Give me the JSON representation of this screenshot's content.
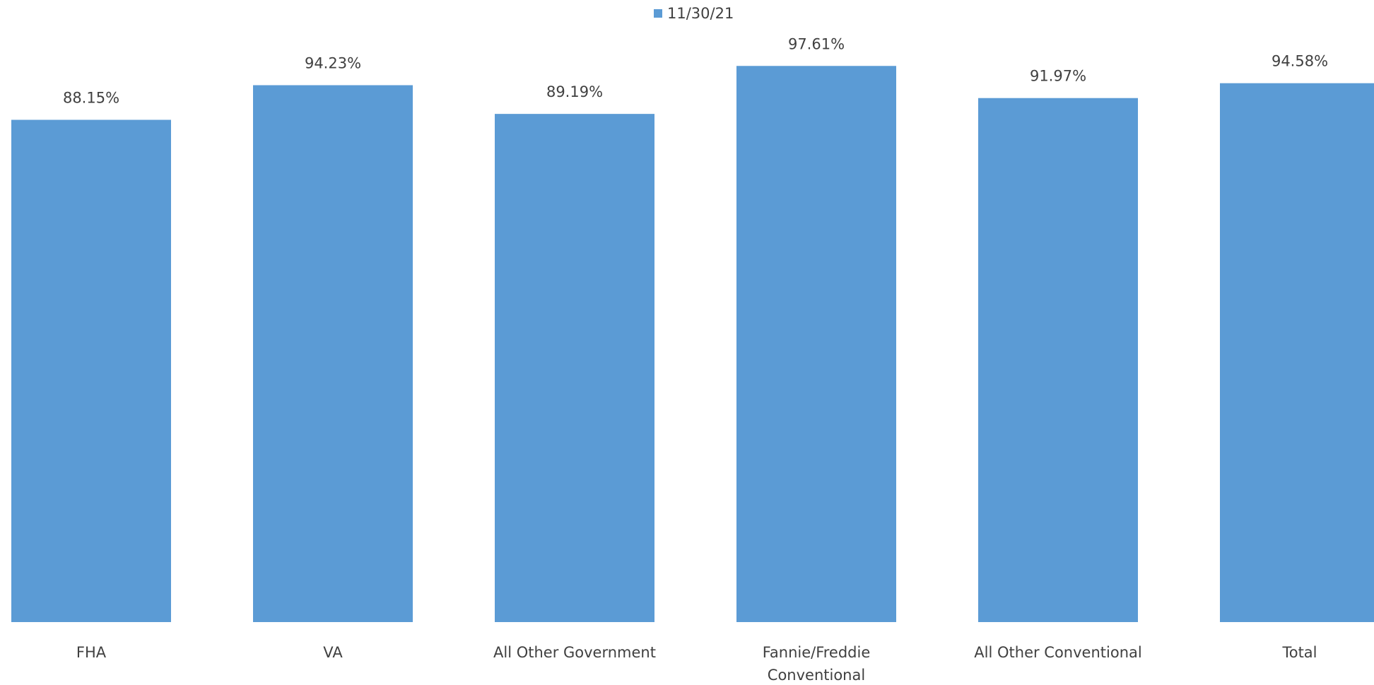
{
  "chart_data": {
    "type": "bar",
    "categories": [
      "FHA",
      "VA",
      "All Other Government",
      "Fannie/Freddie Conventional",
      "All Other Conventional",
      "Total"
    ],
    "series": [
      {
        "name": "11/30/21",
        "color": "#5b9bd5",
        "values": [
          88.15,
          94.23,
          89.19,
          97.61,
          91.97,
          94.58
        ],
        "value_labels": [
          "88.15%",
          "94.23%",
          "89.19%",
          "97.61%",
          "91.97%",
          "94.58%"
        ]
      }
    ],
    "ylim": [
      0,
      100
    ]
  }
}
